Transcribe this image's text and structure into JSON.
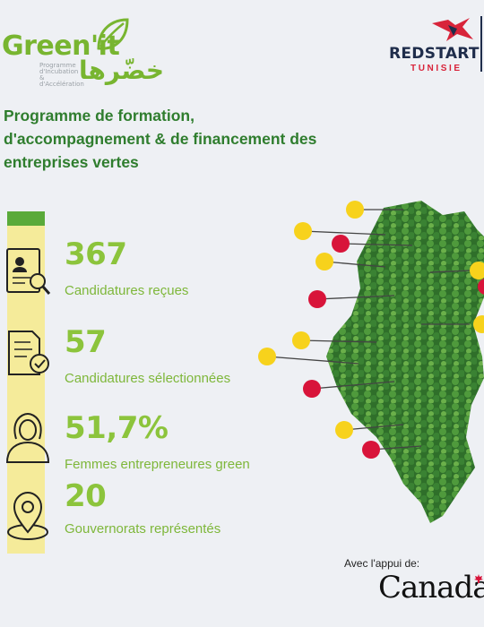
{
  "header": {
    "green_logo": {
      "brand": "Green'it",
      "arabic": "خضّرها",
      "subtitle_lines": [
        "Programme",
        "d'Incubation",
        "& d'Accélération"
      ]
    },
    "partner_logo": {
      "name": "REDSTART",
      "country": "TUNISIE"
    }
  },
  "title_lines": [
    "Programme de formation,",
    "d'accompagnement & de financement des",
    "entreprises vertes"
  ],
  "stats": [
    {
      "value": "367",
      "label": "Candidatures reçues",
      "icon": "cv-search-icon"
    },
    {
      "value": "57",
      "label": "Candidatures sélectionnées",
      "icon": "document-check-icon"
    },
    {
      "value": "51,7%",
      "label": "Femmes entrepreneures green",
      "icon": "woman-icon"
    },
    {
      "value": "20",
      "label": "Gouvernorats représentés",
      "icon": "location-pin-icon"
    }
  ],
  "map": {
    "icon": "tunisia-forest-map"
  },
  "footer": {
    "support_text": "Avec l'appui de:",
    "sponsor": "Canada"
  },
  "colors": {
    "accent_green": "#8cc43c",
    "title_green": "#2f7d2e",
    "bar_yellow": "#f5eb9a",
    "marker_yellow": "#f7d21c",
    "marker_red": "#d8143a",
    "navy": "#1f2d4b"
  }
}
